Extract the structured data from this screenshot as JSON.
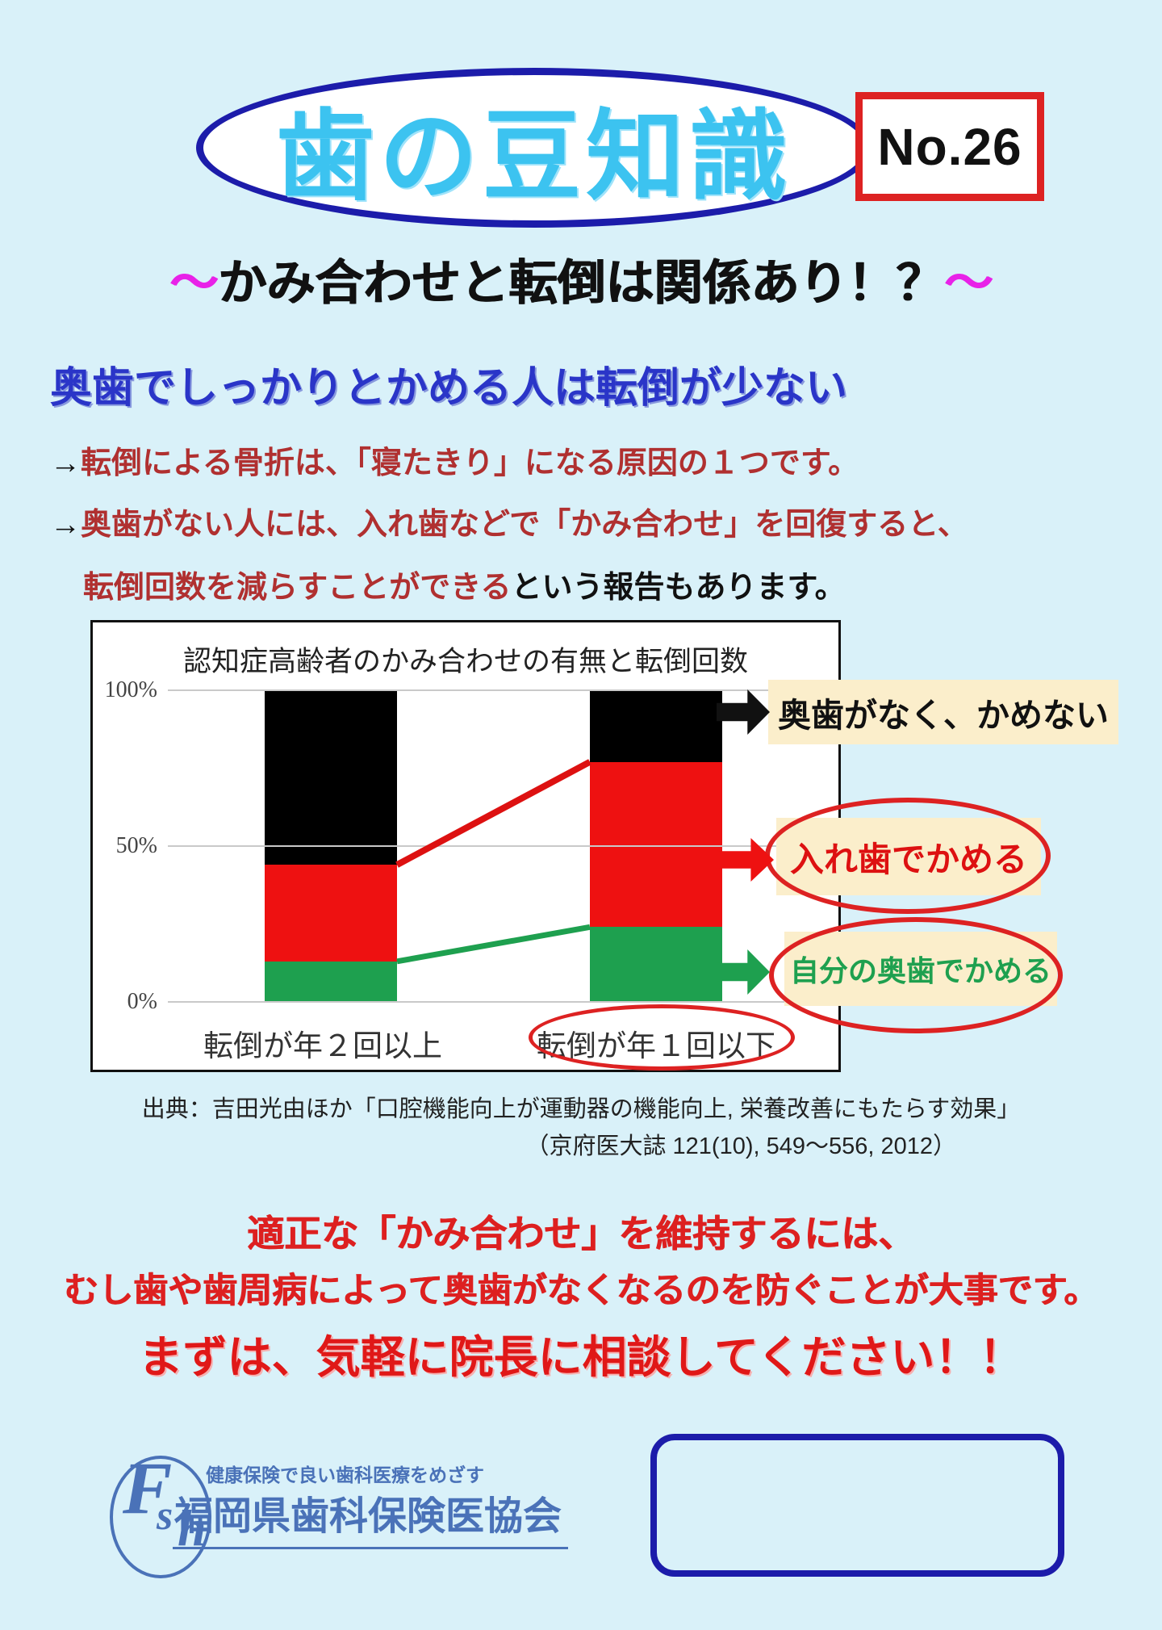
{
  "header": {
    "logo_text": "歯の豆知識",
    "issue_no": "No.26",
    "title_tilde_left": "～",
    "title": "かみ合わせと転倒は関係あり！？",
    "title_tilde_right": "～"
  },
  "lead": {
    "heading": "奥歯でしっかりとかめる人は転倒が少ない",
    "p1_arrow": "→",
    "p1": "転倒による骨折は、「寝たきり」になる原因の１つです。",
    "p2_arrow": "→",
    "p2": "奥歯がない人には、入れ歯などで「かみ合わせ」を回復すると、",
    "p3_red": "転倒回数を減らすことができる",
    "p3_black": "という報告もあります。"
  },
  "chart_data": {
    "type": "stacked-bar",
    "title": "認知症高齢者のかみ合わせの有無と転倒回数",
    "categories": [
      "転倒が年２回以上",
      "転倒が年１回以下"
    ],
    "series": [
      {
        "name": "自分の奥歯でかめる",
        "color": "#1ea04f",
        "values": [
          13,
          24
        ]
      },
      {
        "name": "入れ歯でかめる",
        "color": "#ee1111",
        "values": [
          31,
          53
        ]
      },
      {
        "name": "奥歯がなく、かめない",
        "color": "#000000",
        "values": [
          56,
          23
        ]
      }
    ],
    "ylim": [
      0,
      100
    ],
    "yticks": [
      {
        "label": "100%",
        "value": 100
      },
      {
        "label": "50%",
        "value": 50
      },
      {
        "label": "0%",
        "value": 0
      }
    ],
    "grid": true,
    "legend_position": "right-annotations",
    "connectors": [
      {
        "between_series": "入れ歯でかめる",
        "color": "#dd1111",
        "width": 8
      },
      {
        "between_series": "自分の奥歯でかめる",
        "color": "#1ea04f",
        "width": 7
      }
    ]
  },
  "annotations": {
    "no_molars": {
      "label": "奥歯がなく、かめない"
    },
    "denture": {
      "label": "入れ歯でかめる"
    },
    "own_molars": {
      "label": "自分の奥歯でかめる"
    }
  },
  "source": {
    "line1": "出典：吉田光由ほか「口腔機能向上が運動器の機能向上, 栄養改善にもたらす効果」",
    "line2": "（京府医大誌 121(10), 549～556, 2012）"
  },
  "message": {
    "line1": "適正な「かみ合わせ」を維持するには、",
    "line2": "むし歯や歯周病によって奥歯がなくなるのを防ぐことが大事です。",
    "line3": "まずは、気軽に院長に相談してください！！"
  },
  "footer": {
    "logo_letters": {
      "f": "F",
      "s": "s",
      "h": "h"
    },
    "tagline": "健康保険で良い歯科医療をめざす",
    "org_name": "福岡県歯科保険医協会"
  },
  "colors": {
    "background": "#d9f1f9",
    "oval_border": "#1c1caa",
    "logo_text": "#3cc3f0",
    "issue_border": "#dd2222",
    "tilde": "#e822e8",
    "heading_blue": "#2a35c8",
    "body_red": "#b03030",
    "chart_red": "#ee1111",
    "chart_green": "#1ea04f",
    "annotation_bg": "#fbeecb",
    "message_red": "#dd2020",
    "footer_blue": "#4a72b8"
  }
}
